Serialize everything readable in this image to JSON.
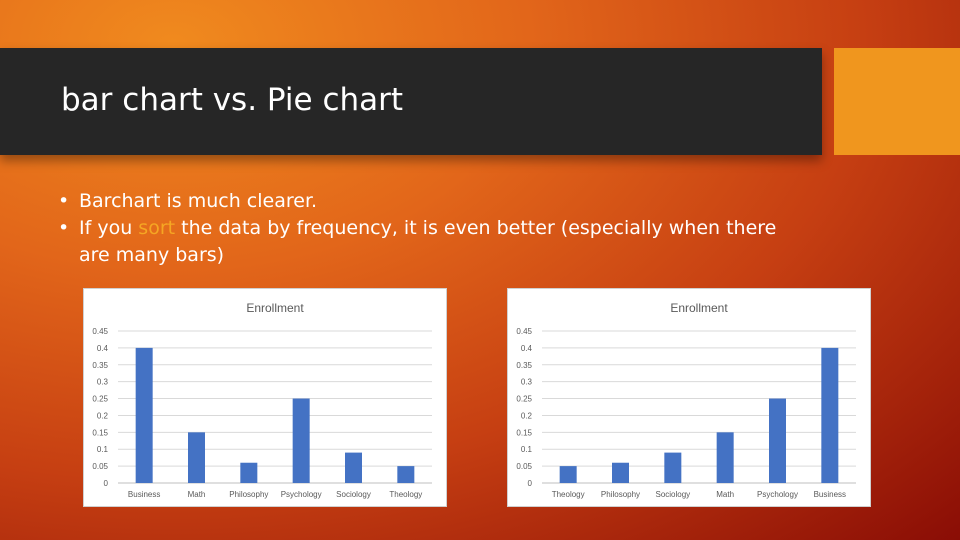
{
  "slide": {
    "title": "bar chart vs. Pie chart",
    "bullets": [
      {
        "text": "Barchart is much clearer."
      },
      {
        "before": "If you ",
        "highlight": "sort",
        "after": " the data by frequency, it is even better (especially when there are many bars)"
      }
    ],
    "colors": {
      "title_band": "#262626",
      "accent_box": "#f0961e",
      "highlight": "#f5a623",
      "bar": "#4472c4"
    }
  },
  "chart_data": [
    {
      "type": "bar",
      "title": "Enrollment",
      "categories": [
        "Business",
        "Math",
        "Philosophy",
        "Psychology",
        "Sociology",
        "Theology"
      ],
      "values": [
        0.4,
        0.15,
        0.06,
        0.25,
        0.09,
        0.05
      ],
      "ylim": [
        0,
        0.45
      ],
      "yticks": [
        "0",
        "0.05",
        "0.1",
        "0.15",
        "0.2",
        "0.25",
        "0.3",
        "0.35",
        "0.4",
        "0.45"
      ],
      "grid": true,
      "xlabel": "",
      "ylabel": ""
    },
    {
      "type": "bar",
      "title": "Enrollment",
      "categories": [
        "Theology",
        "Philosophy",
        "Sociology",
        "Math",
        "Psychology",
        "Business"
      ],
      "values": [
        0.05,
        0.06,
        0.09,
        0.15,
        0.25,
        0.4
      ],
      "ylim": [
        0,
        0.45
      ],
      "yticks": [
        "0",
        "0.05",
        "0.1",
        "0.15",
        "0.2",
        "0.25",
        "0.3",
        "0.35",
        "0.4",
        "0.45"
      ],
      "grid": true,
      "xlabel": "",
      "ylabel": ""
    }
  ]
}
